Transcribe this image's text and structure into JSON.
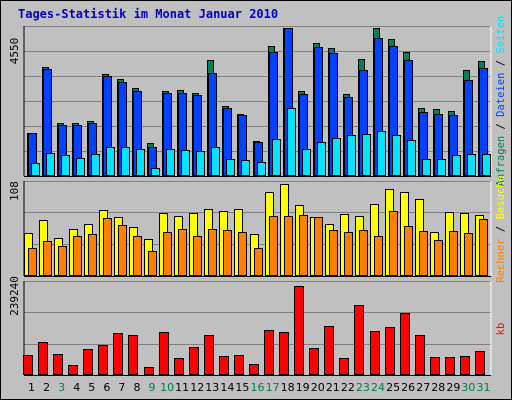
{
  "title": "Tages-Statistik im Monat Januar 2010",
  "colors": {
    "background": "#C0C0C0",
    "grid": "#808080",
    "anfragen": "#00805C",
    "dateien": "#0042FF",
    "seiten": "#00E4FF",
    "besuche": "#FFFF00",
    "rechner": "#FF8000",
    "kb": "#FF0000",
    "label_sunday": "#008040",
    "label_weekday": "#000000"
  },
  "chart_data": [
    {
      "type": "bar",
      "title": "Tages-Statistik im Monat Januar 2010",
      "ymax_label": "4550",
      "ymax": 4550,
      "right_label": [
        {
          "text": "Anfragen",
          "color": "#00805C"
        },
        {
          "text": " / ",
          "color": "#000000"
        },
        {
          "text": "Dateien",
          "color": "#0042FF"
        },
        {
          "text": " / ",
          "color": "#000000"
        },
        {
          "text": "Seiten",
          "color": "#00E4FF"
        }
      ],
      "series": [
        {
          "name": "Anfragen",
          "color": "#00805C",
          "values": [
            1320,
            3360,
            1640,
            1640,
            1680,
            3140,
            2980,
            2720,
            1000,
            2620,
            2640,
            2560,
            3580,
            2160,
            1920,
            1080,
            4000,
            5400,
            2620,
            4080,
            3940,
            2520,
            3590,
            4680,
            4200,
            3810,
            2100,
            2050,
            2010,
            3260,
            3550
          ]
        },
        {
          "name": "Dateien",
          "color": "#0042FF",
          "values": [
            1320,
            3300,
            1580,
            1560,
            1640,
            3080,
            2900,
            2620,
            900,
            2550,
            2560,
            2500,
            3160,
            2080,
            1880,
            1040,
            3800,
            4900,
            2530,
            3960,
            3780,
            2440,
            3260,
            4230,
            3990,
            3570,
            1970,
            1920,
            1880,
            2950,
            3320
          ]
        },
        {
          "name": "Seiten",
          "color": "#00E4FF",
          "values": [
            400,
            720,
            640,
            560,
            680,
            880,
            880,
            840,
            240,
            840,
            800,
            760,
            880,
            520,
            480,
            440,
            1140,
            2080,
            840,
            1060,
            1160,
            1260,
            1280,
            1380,
            1260,
            1110,
            520,
            520,
            640,
            680,
            680
          ]
        }
      ]
    },
    {
      "type": "bar",
      "ymax_label": "108",
      "ymax": 108,
      "right_label": [
        {
          "text": "Rechner",
          "color": "#FF8000"
        },
        {
          "text": " / ",
          "color": "#000000"
        },
        {
          "text": "Besuche",
          "color": "#FFFF00"
        }
      ],
      "series": [
        {
          "name": "Besuche",
          "color": "#FFFF00",
          "values": [
            50,
            65,
            44,
            54,
            60,
            77,
            68,
            57,
            43,
            73,
            70,
            73,
            78,
            75,
            78,
            49,
            97,
            107,
            82,
            69,
            60,
            72,
            70,
            84,
            101,
            97,
            89,
            51,
            74,
            73,
            71
          ]
        },
        {
          "name": "Rechner",
          "color": "#FF8000",
          "values": [
            32,
            41,
            35,
            47,
            49,
            67,
            59,
            47,
            29,
            51,
            54,
            46,
            55,
            53,
            51,
            33,
            70,
            70,
            71,
            68,
            53,
            51,
            53,
            47,
            76,
            58,
            52,
            42,
            52,
            50,
            66
          ]
        }
      ]
    },
    {
      "type": "bar",
      "ymax_label": "239240",
      "ymax": 239240,
      "right_label": [
        {
          "text": "kb",
          "color": "#FF0000"
        }
      ],
      "series": [
        {
          "name": "kb",
          "color": "#FF0000",
          "values": [
            52000,
            87000,
            55000,
            26000,
            68000,
            79000,
            110000,
            104000,
            22000,
            111000,
            43000,
            74000,
            104000,
            50000,
            53000,
            29000,
            118000,
            112000,
            232000,
            71000,
            128000,
            43000,
            182000,
            114000,
            124000,
            162000,
            104000,
            48000,
            48000,
            49000,
            62000
          ]
        }
      ]
    }
  ],
  "days": [
    "1",
    "2",
    "3",
    "4",
    "5",
    "6",
    "7",
    "8",
    "9",
    "10",
    "11",
    "12",
    "13",
    "14",
    "15",
    "16",
    "17",
    "18",
    "19",
    "20",
    "21",
    "22",
    "23",
    "24",
    "25",
    "26",
    "27",
    "28",
    "29",
    "30",
    "31"
  ],
  "sundays": [
    "3",
    "9",
    "10",
    "16",
    "17",
    "23",
    "24",
    "30",
    "31"
  ]
}
